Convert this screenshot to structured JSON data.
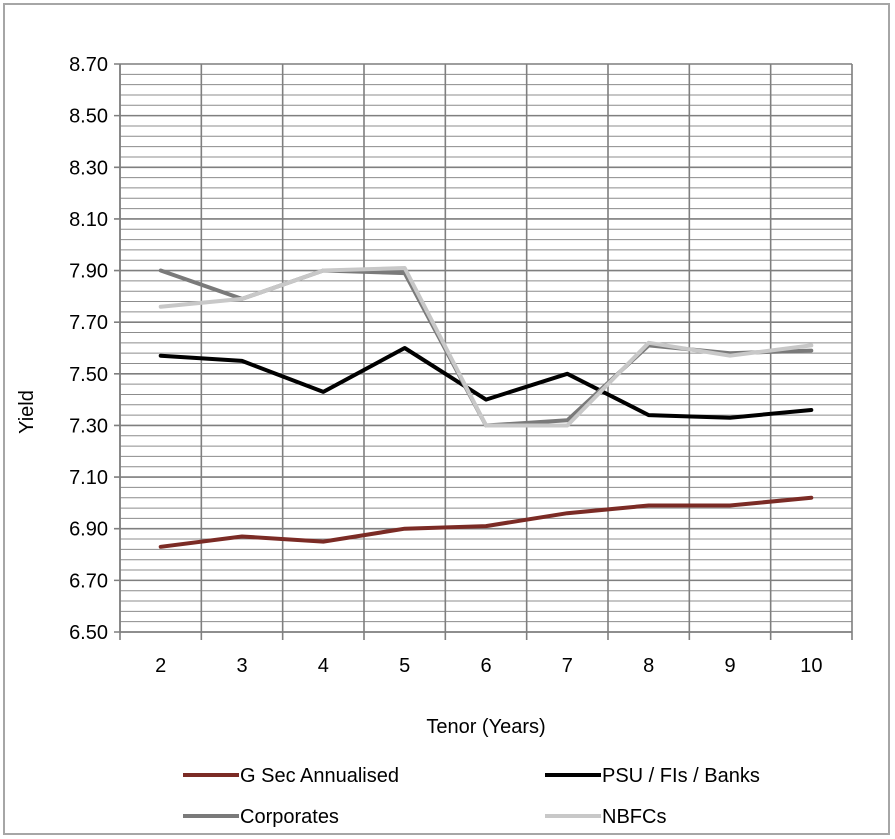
{
  "chart_data": {
    "type": "line",
    "xlabel": "Tenor (Years)",
    "ylabel": "Yield",
    "categories": [
      "2",
      "3",
      "4",
      "5",
      "6",
      "7",
      "8",
      "9",
      "10"
    ],
    "ylim": [
      6.5,
      8.7
    ],
    "yticks": [
      "6.50",
      "6.70",
      "6.90",
      "7.10",
      "7.30",
      "7.50",
      "7.70",
      "7.90",
      "8.10",
      "8.30",
      "8.50",
      "8.70"
    ],
    "minor_grid_step": 0.04,
    "grid": true,
    "legend_position": "bottom",
    "series": [
      {
        "name": "G Sec Annualised",
        "color": "#7b2b25",
        "values": [
          6.83,
          6.87,
          6.85,
          6.9,
          6.91,
          6.96,
          6.99,
          6.99,
          7.02
        ]
      },
      {
        "name": "PSU / FIs / Banks",
        "color": "#000000",
        "values": [
          7.57,
          7.55,
          7.43,
          7.6,
          7.4,
          7.5,
          7.34,
          7.33,
          7.36
        ]
      },
      {
        "name": "Corporates",
        "color": "#7a7a7a",
        "values": [
          7.9,
          7.79,
          7.9,
          7.89,
          7.3,
          7.32,
          7.61,
          7.58,
          7.59
        ]
      },
      {
        "name": "NBFCs",
        "color": "#c8c8c8",
        "values": [
          7.76,
          7.79,
          7.9,
          7.91,
          7.3,
          7.3,
          7.62,
          7.57,
          7.61
        ]
      }
    ]
  }
}
